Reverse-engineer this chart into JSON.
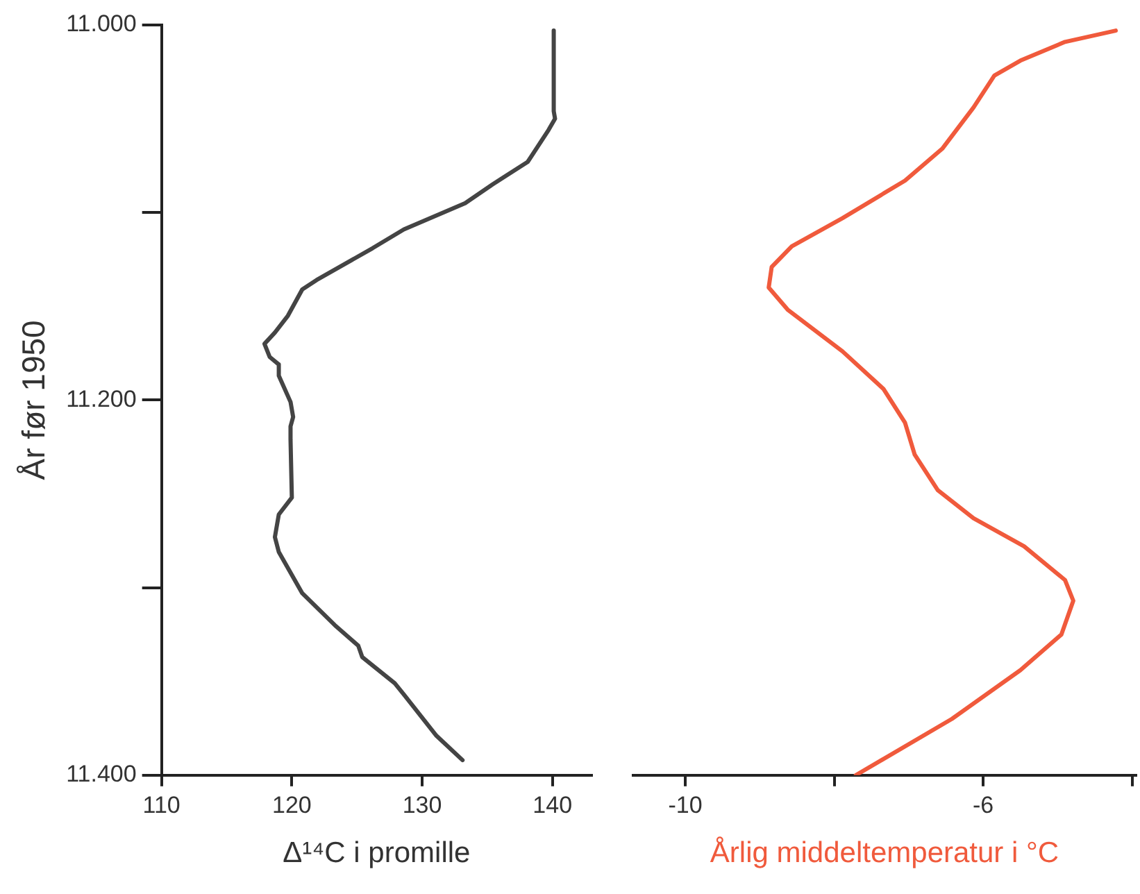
{
  "chart_data": [
    {
      "type": "line",
      "orientation": "horizontal",
      "xlabel": "Δ¹⁴C i promille",
      "ylabel": "År før 1950",
      "marker": "none",
      "x": [
        11003,
        11046,
        11050,
        11056,
        11073,
        11085,
        11095,
        11109,
        11119,
        11136,
        11141,
        11155,
        11164,
        11170,
        11177,
        11181,
        11187,
        11201,
        11209,
        11214,
        11221,
        11252,
        11261,
        11273,
        11281,
        11303,
        11320,
        11331,
        11337,
        11351,
        11357,
        11379,
        11392
      ],
      "series": [
        {
          "color": "#444444",
          "values": [
            140.1,
            140.1,
            140.2,
            139.7,
            138.1,
            135.4,
            133.3,
            128.6,
            126.2,
            121.9,
            120.8,
            119.7,
            118.7,
            117.9,
            118.3,
            119.0,
            119.0,
            119.9,
            120.1,
            119.9,
            119.9,
            120.0,
            119.0,
            118.7,
            119.0,
            120.8,
            123.3,
            125.1,
            125.4,
            127.9,
            128.6,
            131.1,
            133.1
          ]
        }
      ],
      "xlim": [
        110,
        143
      ],
      "xticks": [
        110,
        120,
        130,
        140
      ],
      "ylim": [
        11400,
        11000
      ],
      "yticks": [
        {
          "value": 11000,
          "label": "11.000"
        },
        {
          "value": 11100,
          "label": null
        },
        {
          "value": 11200,
          "label": "11.200"
        },
        {
          "value": 11300,
          "label": null
        },
        {
          "value": 11400,
          "label": "11.400"
        }
      ]
    },
    {
      "type": "line",
      "orientation": "horizontal",
      "xlabel": "Årlig middeltemperatur i °C",
      "marker": "none",
      "tick_labels": "x",
      "x": [
        11003,
        11009,
        11019,
        11027,
        11044,
        11066,
        11083,
        11103,
        11118,
        11129,
        11140,
        11152,
        11174,
        11194,
        11212,
        11229,
        11248,
        11263,
        11278,
        11296,
        11307,
        11325,
        11344,
        11370,
        11400
      ],
      "series": [
        {
          "color": "#f05a3c",
          "values": [
            -4.22,
            -4.9,
            -5.5,
            -5.85,
            -6.13,
            -6.55,
            -7.05,
            -7.89,
            -8.57,
            -8.84,
            -8.88,
            -8.62,
            -7.89,
            -7.34,
            -7.05,
            -6.92,
            -6.61,
            -6.13,
            -5.45,
            -4.9,
            -4.79,
            -4.95,
            -5.5,
            -6.42,
            -7.71
          ]
        }
      ],
      "xlim": [
        -10.7,
        -3.95
      ],
      "xticks": [
        -10,
        {
          "value": -8,
          "label": null
        },
        -6,
        {
          "value": -4,
          "label": null
        }
      ],
      "ylim": [
        11400,
        11000
      ]
    }
  ]
}
